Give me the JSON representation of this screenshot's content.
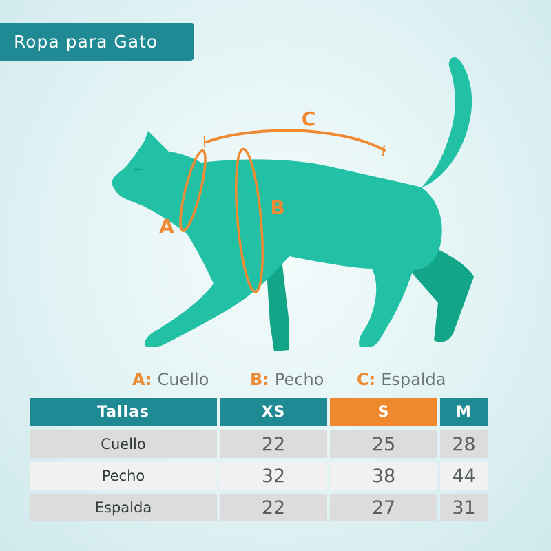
{
  "title": "Ropa para Gato",
  "diagram_labels": {
    "a": "A",
    "b": "B",
    "c": "C"
  },
  "legend": [
    {
      "key": "A:",
      "text": "Cuello"
    },
    {
      "key": "B:",
      "text": "Pecho"
    },
    {
      "key": "C:",
      "text": "Espalda"
    }
  ],
  "table": {
    "headers": [
      "Tallas",
      "XS",
      "S",
      "M"
    ],
    "rows": [
      {
        "label": "Cuello",
        "values": [
          "22",
          "25",
          "28"
        ]
      },
      {
        "label": "Pecho",
        "values": [
          "32",
          "38",
          "44"
        ]
      },
      {
        "label": "Espalda",
        "values": [
          "22",
          "27",
          "31"
        ]
      }
    ]
  },
  "colors": {
    "teal": "#1f8a93",
    "cat": "#22c1a5",
    "cat_shadow": "#13a587",
    "orange": "#f0882e",
    "row_grey": "#dcdcdc",
    "row_light": "#f1f1f1"
  }
}
